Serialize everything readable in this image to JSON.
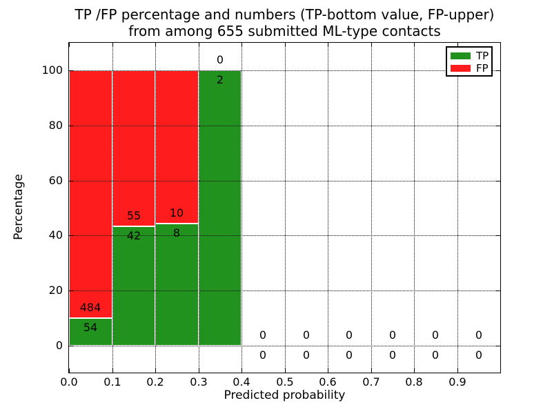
{
  "chart_data": {
    "type": "bar",
    "stacked": true,
    "title": [
      "TP /FP percentage and numbers (TP-bottom value, FP-upper)",
      "from among 655 submitted ML-type contacts"
    ],
    "xlabel": "Predicted probability",
    "ylabel": "Percentage",
    "xlim": [
      0.0,
      1.0
    ],
    "ylim": [
      -10,
      110
    ],
    "grid": true,
    "xticks": {
      "values": [
        0.0,
        0.1,
        0.2,
        0.3,
        0.4,
        0.5,
        0.6,
        0.7,
        0.8,
        0.9
      ],
      "labels": [
        "0.0",
        "0.1",
        "0.2",
        "0.3",
        "0.4",
        "0.5",
        "0.6",
        "0.7",
        "0.8",
        "0.9"
      ]
    },
    "yticks": {
      "values": [
        0,
        20,
        40,
        60,
        80,
        100
      ],
      "labels": [
        "0",
        "20",
        "40",
        "60",
        "80",
        "100"
      ]
    },
    "legend": {
      "position": "upper right",
      "entries": [
        {
          "label": "TP",
          "color": "#22921e"
        },
        {
          "label": "FP",
          "color": "#fe1d1c"
        }
      ]
    },
    "total_contacts": 655,
    "bins": [
      {
        "x0": 0.0,
        "x1": 0.1,
        "tp": 54,
        "fp": 484
      },
      {
        "x0": 0.1,
        "x1": 0.2,
        "tp": 42,
        "fp": 55
      },
      {
        "x0": 0.2,
        "x1": 0.3,
        "tp": 8,
        "fp": 10
      },
      {
        "x0": 0.3,
        "x1": 0.4,
        "tp": 2,
        "fp": 0
      },
      {
        "x0": 0.4,
        "x1": 0.5,
        "tp": 0,
        "fp": 0
      },
      {
        "x0": 0.5,
        "x1": 0.6,
        "tp": 0,
        "fp": 0
      },
      {
        "x0": 0.6,
        "x1": 0.7,
        "tp": 0,
        "fp": 0
      },
      {
        "x0": 0.7,
        "x1": 0.8,
        "tp": 0,
        "fp": 0
      },
      {
        "x0": 0.8,
        "x1": 0.9,
        "tp": 0,
        "fp": 0
      },
      {
        "x0": 0.9,
        "x1": 1.0,
        "tp": 0,
        "fp": 0
      }
    ]
  },
  "colors": {
    "background": "#ffffff",
    "text": "#000000",
    "grid": "#000000",
    "bar_edge": "#ffffff"
  }
}
